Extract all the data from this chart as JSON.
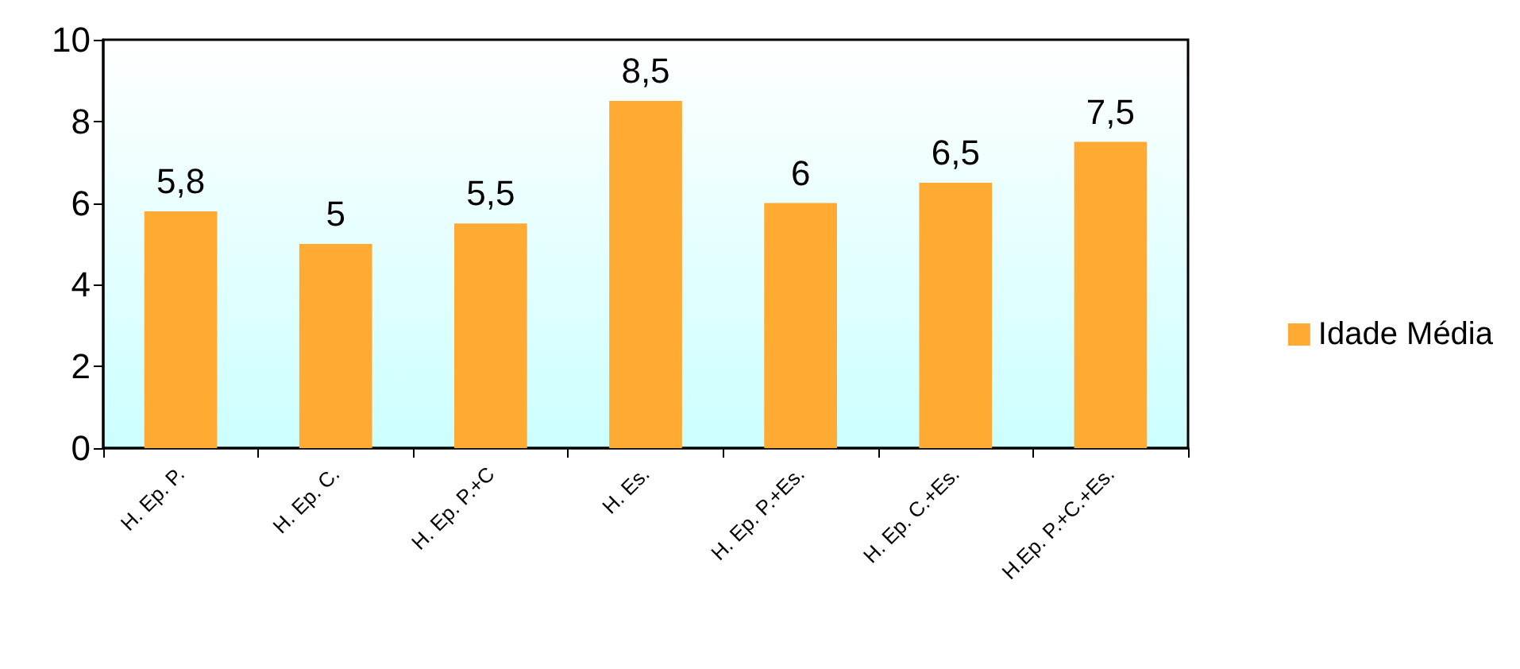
{
  "chart_data": {
    "type": "bar",
    "categories": [
      "H. Ep. P.",
      "H. Ep. C.",
      "H. Ep. P.+C",
      "H. Es.",
      "H. Ep. P.+Es.",
      "H. Ep. C.+Es.",
      "H.Ep. P.+C.+Es."
    ],
    "series": [
      {
        "name": "Idade Média",
        "color": "#ffaa33",
        "values": [
          5.8,
          5,
          5.5,
          8.5,
          6,
          6.5,
          7.5
        ],
        "value_labels": [
          "5,8",
          "5",
          "5,5",
          "8,5",
          "6",
          "6,5",
          "7,5"
        ]
      }
    ],
    "ylim": [
      0,
      10
    ],
    "yticks": [
      0,
      2,
      4,
      6,
      8,
      10
    ],
    "grid": false,
    "legend": "right"
  }
}
